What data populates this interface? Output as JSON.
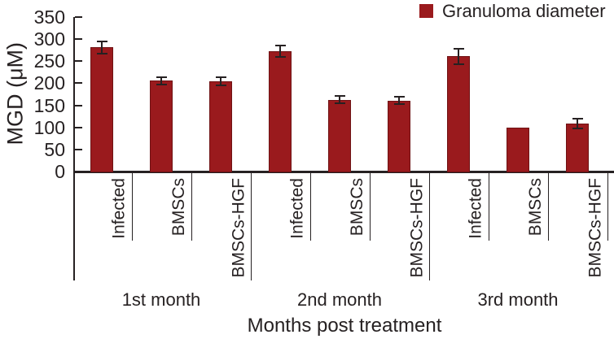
{
  "chart_data": {
    "type": "bar",
    "title": "",
    "ylabel": "MGD (μM)",
    "xlabel": "Months post treatment",
    "ylim": [
      0,
      350
    ],
    "yticks": [
      0,
      50,
      100,
      150,
      200,
      250,
      300,
      350
    ],
    "grid": false,
    "legend_position": "top-right",
    "legend": [
      {
        "label": "Granuloma diameter",
        "color": "#9a1a1d"
      }
    ],
    "bar_color": "#9a1a1d",
    "axis_color": "#262122",
    "groups": [
      {
        "label": "1st month",
        "bars": [
          {
            "category": "Infected",
            "value": 281,
            "error": 13
          },
          {
            "category": "BMSCs",
            "value": 206,
            "error": 8
          },
          {
            "category": "BMSCs-HGF",
            "value": 204,
            "error": 9
          }
        ]
      },
      {
        "label": "2nd month",
        "bars": [
          {
            "category": "Infected",
            "value": 273,
            "error": 13
          },
          {
            "category": "BMSCs",
            "value": 163,
            "error": 8
          },
          {
            "category": "BMSCs-HGF",
            "value": 161,
            "error": 8
          }
        ]
      },
      {
        "label": "3rd month",
        "bars": [
          {
            "category": "Infected",
            "value": 261,
            "error": 17
          },
          {
            "category": "BMSCs",
            "value": 100,
            "error": 0
          },
          {
            "category": "BMSCs-HGF",
            "value": 109,
            "error": 11
          }
        ]
      }
    ]
  }
}
